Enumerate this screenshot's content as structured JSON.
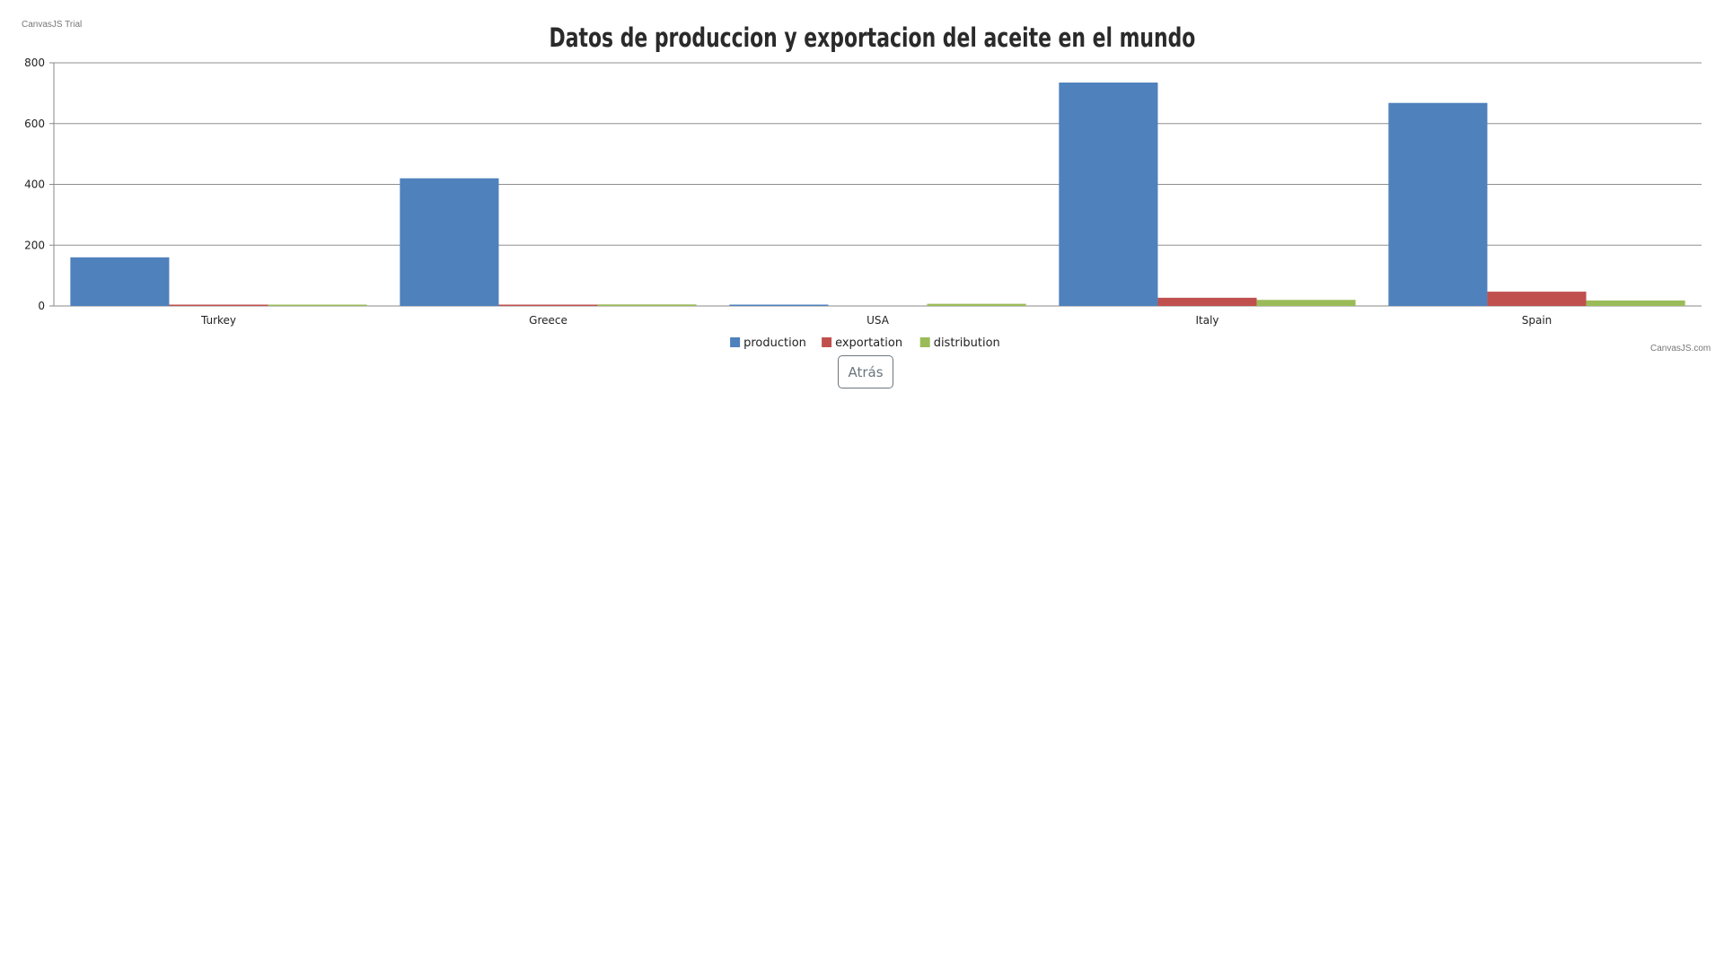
{
  "watermark": {
    "trial": "CanvasJS Trial",
    "credit": "CanvasJS.com"
  },
  "back_button": {
    "label": "Atrás"
  },
  "chart_data": {
    "type": "bar",
    "title": "Datos de produccion y exportacion del aceite en el mundo",
    "xlabel": "",
    "ylabel": "",
    "ylim": [
      0,
      800
    ],
    "yticks": [
      0,
      200,
      400,
      600,
      800
    ],
    "grid": true,
    "legend_position": "bottom-center",
    "categories": [
      "Turkey",
      "Greece",
      "USA",
      "Italy",
      "Spain"
    ],
    "series": [
      {
        "name": "production",
        "color": "#4f81bc",
        "values": [
          160,
          420,
          1,
          735,
          668
        ]
      },
      {
        "name": "exportation",
        "color": "#c0504e",
        "values": [
          1,
          3,
          0,
          27,
          47
        ]
      },
      {
        "name": "distribution",
        "color": "#9bbb58",
        "values": [
          2,
          5,
          7,
          20,
          18
        ]
      }
    ]
  }
}
